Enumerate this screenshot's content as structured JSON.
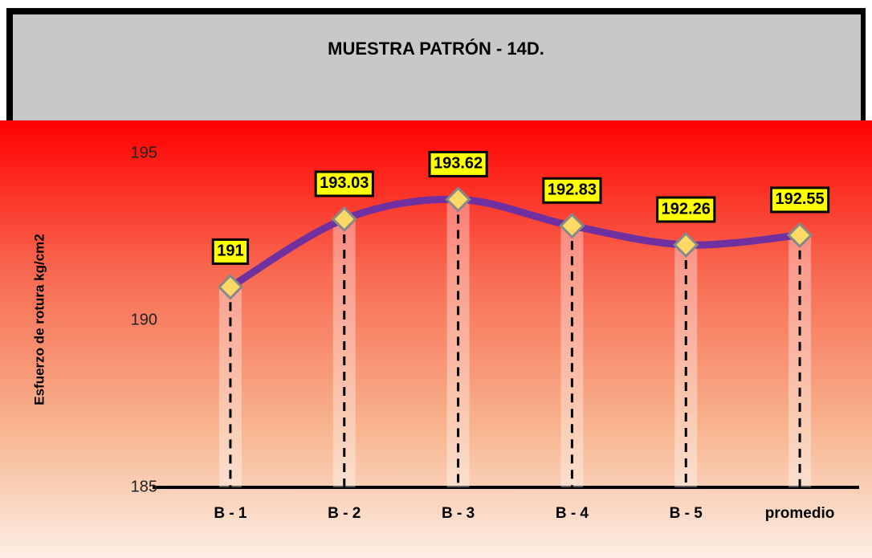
{
  "chart_data": {
    "type": "line",
    "title": "MUESTRA PATRÓN - 14D.",
    "y_label": "Esfuerzo de rotura kg/cm2",
    "categories": [
      "B - 1",
      "B - 2",
      "B - 3",
      "B - 4",
      "B - 5",
      "promedio"
    ],
    "values": [
      191,
      193.03,
      193.62,
      192.83,
      192.26,
      192.55
    ],
    "color": "#7030a0",
    "marker_color": "#ffd966",
    "label_color": "#ffff00",
    "ylim": [
      185,
      195
    ],
    "yticks": [
      185,
      190,
      195
    ],
    "grid": false
  }
}
